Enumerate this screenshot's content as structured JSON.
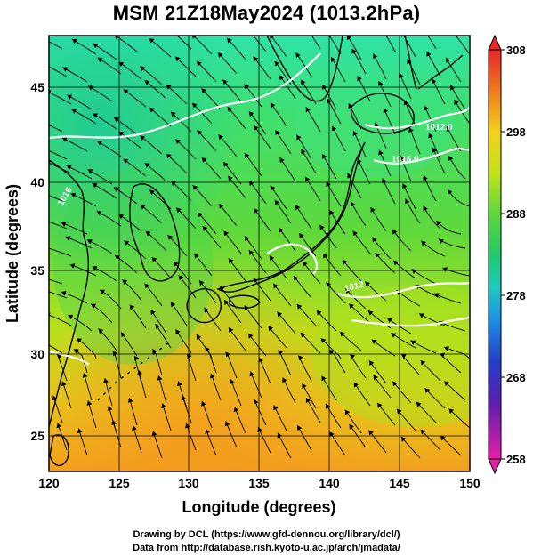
{
  "title": "MSM 21Z18May2024 (1013.2hPa)",
  "axes": {
    "xlabel": "Longitude (degrees)",
    "ylabel": "Latitude  (degrees)",
    "xticks": [
      "120",
      "125",
      "130",
      "135",
      "140",
      "145",
      "150"
    ],
    "yticks": [
      "25",
      "30",
      "35",
      "40",
      "45"
    ],
    "xrange": [
      120,
      150
    ],
    "yrange": [
      22.4,
      47.6
    ]
  },
  "colorbar": {
    "ticks": [
      "308",
      "298",
      "288",
      "278",
      "268",
      "258"
    ],
    "range": [
      258,
      308
    ]
  },
  "contour_labels": [
    "1012.0",
    "1016.0",
    "1012",
    "1016"
  ],
  "footer": {
    "line1": "Drawing by DCL (https://www.gfd-dennou.org/library/dcl/)",
    "line2": "Data from http://database.rish.kyoto-u.ac.jp/arch/jmadata/"
  },
  "colors": {
    "warm": "#f2a01e",
    "mid": "#9ad81e",
    "cool": "#1ed79a",
    "land_outline": "#000000",
    "isobar": "#ffffff"
  }
}
